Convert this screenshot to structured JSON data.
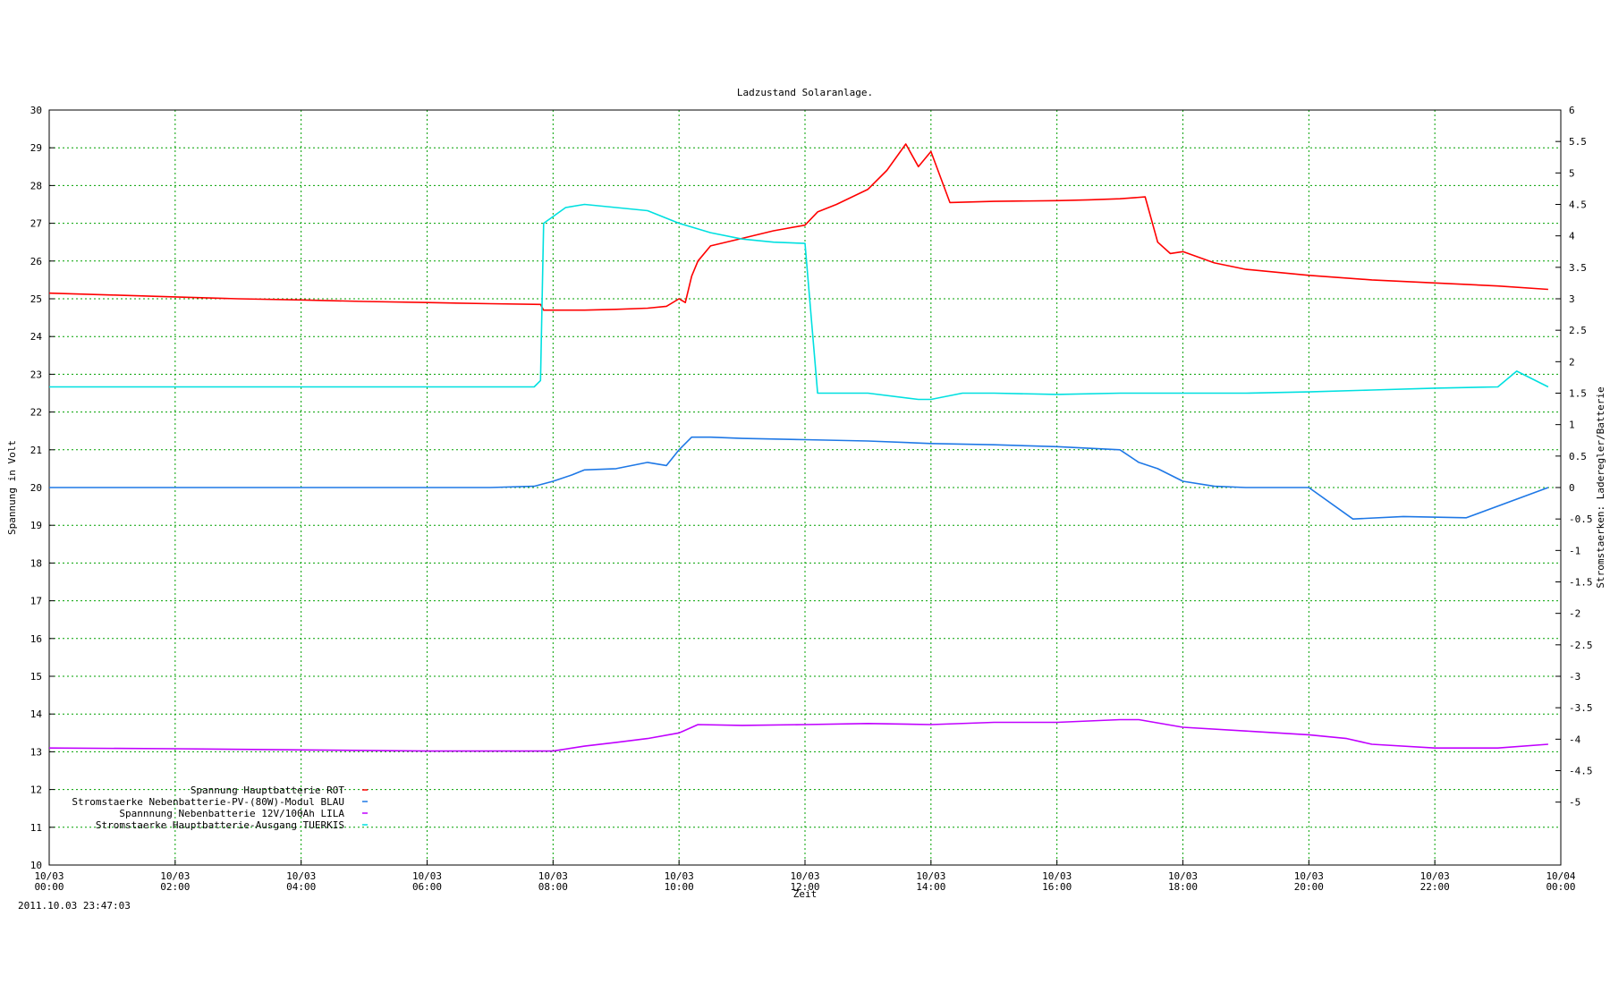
{
  "chart_data": {
    "type": "line",
    "title": "Ladzustand Solaranlage.",
    "xlabel": "Zeit",
    "ylabel": "Spannung in Volt",
    "y2label": "Stromstaerken: Laderegler/Batterie",
    "timestamp": "2011.10.03 23:47:03",
    "x_range": [
      0,
      24
    ],
    "ylim": [
      10,
      30
    ],
    "y2lim": [
      -6,
      6
    ],
    "grid": true,
    "legend_position": "bottom-left",
    "x_ticks": [
      {
        "value": 0,
        "date": "10/03",
        "time": "00:00"
      },
      {
        "value": 2,
        "date": "10/03",
        "time": "02:00"
      },
      {
        "value": 4,
        "date": "10/03",
        "time": "04:00"
      },
      {
        "value": 6,
        "date": "10/03",
        "time": "06:00"
      },
      {
        "value": 8,
        "date": "10/03",
        "time": "08:00"
      },
      {
        "value": 10,
        "date": "10/03",
        "time": "10:00"
      },
      {
        "value": 12,
        "date": "10/03",
        "time": "12:00"
      },
      {
        "value": 14,
        "date": "10/03",
        "time": "14:00"
      },
      {
        "value": 16,
        "date": "10/03",
        "time": "16:00"
      },
      {
        "value": 18,
        "date": "10/03",
        "time": "18:00"
      },
      {
        "value": 20,
        "date": "10/03",
        "time": "20:00"
      },
      {
        "value": 22,
        "date": "10/03",
        "time": "22:00"
      },
      {
        "value": 24,
        "date": "10/04",
        "time": "00:00"
      }
    ],
    "y_ticks": [
      10,
      11,
      12,
      13,
      14,
      15,
      16,
      17,
      18,
      19,
      20,
      21,
      22,
      23,
      24,
      25,
      26,
      27,
      28,
      29,
      30
    ],
    "y2_ticks": [
      "6",
      "5.5",
      "5",
      "4.5",
      "4",
      "3.5",
      "3",
      "2.5",
      "2",
      "1.5",
      "1",
      "0.5",
      "0",
      "-0.5",
      "-1",
      "-1.5",
      "-2",
      "-2.5",
      "-3",
      "-3.5",
      "-4",
      "-4.5",
      "-5"
    ],
    "series": [
      {
        "name": "Spannung Hauptbatterie ROT",
        "color": "#ff0000",
        "axis": "y",
        "x": [
          0.0,
          1.0,
          2.0,
          3.0,
          4.0,
          5.0,
          6.0,
          7.0,
          7.8,
          7.85,
          8.5,
          9.0,
          9.5,
          9.8,
          10.0,
          10.1,
          10.2,
          10.3,
          10.5,
          11.0,
          11.5,
          12.0,
          12.2,
          12.5,
          13.0,
          13.3,
          13.6,
          13.8,
          14.0,
          14.3,
          15.0,
          16.0,
          16.5,
          17.0,
          17.4,
          17.6,
          17.8,
          18.0,
          18.5,
          19.0,
          20.0,
          21.0,
          22.0,
          23.0,
          23.8
        ],
        "y": [
          25.15,
          25.1,
          25.05,
          25.0,
          24.97,
          24.93,
          24.9,
          24.87,
          24.85,
          24.7,
          24.7,
          24.72,
          24.75,
          24.8,
          25.0,
          24.9,
          25.6,
          26.0,
          26.4,
          26.6,
          26.8,
          26.95,
          27.3,
          27.5,
          27.9,
          28.4,
          29.1,
          28.5,
          28.9,
          27.55,
          27.58,
          27.6,
          27.62,
          27.65,
          27.7,
          26.5,
          26.2,
          26.25,
          25.95,
          25.78,
          25.62,
          25.5,
          25.42,
          25.34,
          25.25
        ]
      },
      {
        "name": "Stromstaerke Nebenbatterie-PV-(80W)-Modul BLAU",
        "color": "#1e78e6",
        "axis": "y2",
        "x": [
          0.0,
          2.0,
          4.0,
          6.0,
          7.0,
          7.7,
          8.0,
          8.3,
          8.5,
          9.0,
          9.5,
          9.8,
          10.0,
          10.2,
          10.5,
          11.0,
          12.0,
          13.0,
          14.0,
          15.0,
          16.0,
          17.0,
          17.3,
          17.6,
          18.0,
          18.5,
          19.0,
          20.0,
          20.7,
          21.5,
          22.5,
          23.8
        ],
        "y": [
          0.0,
          0.0,
          0.0,
          0.0,
          0.0,
          0.02,
          0.1,
          0.2,
          0.28,
          0.3,
          0.4,
          0.35,
          0.6,
          0.8,
          0.8,
          0.78,
          0.76,
          0.74,
          0.7,
          0.68,
          0.65,
          0.6,
          0.4,
          0.3,
          0.1,
          0.02,
          0.0,
          0.0,
          -0.5,
          -0.46,
          -0.48,
          0.0
        ]
      },
      {
        "name": "Spannnung Nebenbatterie 12V/100Ah LILA",
        "color": "#c000ff",
        "axis": "y",
        "x": [
          0.0,
          2.0,
          4.0,
          6.0,
          8.0,
          8.5,
          9.0,
          9.5,
          10.0,
          10.3,
          11.0,
          12.0,
          13.0,
          14.0,
          15.0,
          16.0,
          17.0,
          17.3,
          18.0,
          19.0,
          20.0,
          20.6,
          21.0,
          22.0,
          23.0,
          23.8
        ],
        "y": [
          13.1,
          13.08,
          13.05,
          13.02,
          13.02,
          13.15,
          13.25,
          13.35,
          13.5,
          13.72,
          13.7,
          13.72,
          13.75,
          13.72,
          13.78,
          13.78,
          13.85,
          13.85,
          13.65,
          13.55,
          13.45,
          13.35,
          13.2,
          13.1,
          13.1,
          13.2
        ]
      },
      {
        "name": "Stromstaerke Hauptbatterie-Ausgang TUERKIS",
        "color": "#00e0e0",
        "axis": "y2",
        "x": [
          0.0,
          2.0,
          4.0,
          6.0,
          7.0,
          7.7,
          7.8,
          7.85,
          8.2,
          8.5,
          9.0,
          9.5,
          10.0,
          10.5,
          11.0,
          11.5,
          12.0,
          12.2,
          13.0,
          13.8,
          14.0,
          14.5,
          15.0,
          16.0,
          17.0,
          18.0,
          19.0,
          20.0,
          21.0,
          22.0,
          23.0,
          23.3,
          23.8
        ],
        "y": [
          1.6,
          1.6,
          1.6,
          1.6,
          1.6,
          1.6,
          1.7,
          4.2,
          4.45,
          4.5,
          4.45,
          4.4,
          4.2,
          4.05,
          3.95,
          3.9,
          3.88,
          1.5,
          1.5,
          1.4,
          1.4,
          1.5,
          1.5,
          1.48,
          1.5,
          1.5,
          1.5,
          1.52,
          1.55,
          1.58,
          1.6,
          1.85,
          1.6
        ]
      }
    ]
  }
}
